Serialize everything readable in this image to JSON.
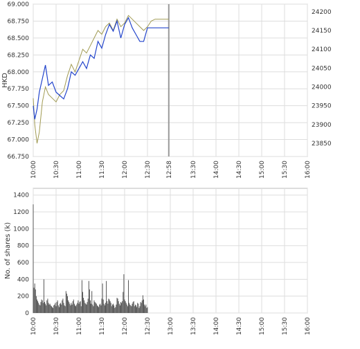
{
  "chart_data": [
    {
      "type": "line",
      "ylabel": "HKD",
      "x_ticks": [
        "10:00",
        "10:30",
        "11:00",
        "11:30",
        "12:00",
        "12:30",
        "12:58",
        "13:30",
        "14:00",
        "14:30",
        "15:00",
        "15:30",
        "16:00"
      ],
      "x_range": [
        "10:00",
        "16:00"
      ],
      "y_ticks": [
        "66.750",
        "67.000",
        "67.250",
        "67.500",
        "67.750",
        "68.000",
        "68.250",
        "68.500",
        "68.750",
        "69.000"
      ],
      "ylim": [
        66.75,
        69.0
      ],
      "y2_ticks": [
        "23850",
        "23900",
        "23950",
        "24000",
        "24050",
        "24100",
        "24150",
        "24200"
      ],
      "y2lim": [
        23815,
        24220
      ],
      "marker_time": "12:58",
      "grid": true,
      "colors": {
        "price": "#2244cc",
        "index": "#a09a52",
        "marker": "#999999",
        "grid": "#dddddd"
      },
      "series": [
        {
          "axis": "left",
          "x": [
            "10:00",
            "10:02",
            "10:05",
            "10:08",
            "10:12",
            "10:16",
            "10:20",
            "10:25",
            "10:30",
            "10:35",
            "10:40",
            "10:45",
            "10:50",
            "10:55",
            "11:00",
            "11:05",
            "11:10",
            "11:15",
            "11:20",
            "11:25",
            "11:30",
            "11:35",
            "11:40",
            "11:45",
            "11:50",
            "11:55",
            "12:00",
            "12:05",
            "12:10",
            "12:15",
            "12:20",
            "12:25",
            "12:30",
            "12:35",
            "12:40",
            "12:45",
            "12:50",
            "12:58"
          ],
          "y": [
            67.5,
            67.3,
            67.45,
            67.7,
            67.9,
            68.1,
            67.8,
            67.85,
            67.7,
            67.65,
            67.6,
            67.75,
            68.0,
            67.95,
            68.05,
            68.15,
            68.05,
            68.25,
            68.2,
            68.45,
            68.35,
            68.55,
            68.7,
            68.6,
            68.75,
            68.5,
            68.7,
            68.8,
            68.65,
            68.55,
            68.45,
            68.45,
            68.65,
            68.65,
            68.65,
            68.65,
            68.65,
            68.65
          ]
        },
        {
          "axis": "right",
          "x": [
            "10:00",
            "10:02",
            "10:05",
            "10:08",
            "10:12",
            "10:16",
            "10:20",
            "10:25",
            "10:30",
            "10:35",
            "10:40",
            "10:45",
            "10:50",
            "10:55",
            "11:00",
            "11:05",
            "11:10",
            "11:15",
            "11:20",
            "11:25",
            "11:30",
            "11:35",
            "11:40",
            "11:45",
            "11:50",
            "11:55",
            "12:00",
            "12:05",
            "12:10",
            "12:15",
            "12:20",
            "12:25",
            "12:30",
            "12:35",
            "12:40",
            "12:45",
            "12:50",
            "12:58"
          ],
          "y": [
            23970,
            23900,
            23850,
            23880,
            23960,
            24000,
            23980,
            23970,
            23960,
            23980,
            23990,
            24030,
            24060,
            24040,
            24070,
            24100,
            24090,
            24110,
            24130,
            24150,
            24140,
            24160,
            24170,
            24150,
            24180,
            24160,
            24170,
            24190,
            24180,
            24170,
            24160,
            24150,
            24160,
            24175,
            24180,
            24180,
            24180,
            24180
          ]
        }
      ]
    },
    {
      "type": "bar",
      "ylabel": "No. of shares (k)",
      "x_ticks": [
        "10:00",
        "10:30",
        "11:00",
        "11:30",
        "12:00",
        "12:30",
        "13:00",
        "13:30",
        "14:00",
        "14:30",
        "15:00",
        "15:30",
        "16:00"
      ],
      "x_range": [
        "10:00",
        "16:00"
      ],
      "y_ticks": [
        "0",
        "200",
        "400",
        "600",
        "800",
        "1000",
        "1200",
        "1400"
      ],
      "ylim": [
        0,
        1480
      ],
      "grid": true,
      "colors": {
        "bar": "#555555",
        "grid": "#dddddd"
      },
      "bars": {
        "x": [
          "10:00",
          "10:01",
          "10:02",
          "10:03",
          "10:04",
          "10:05",
          "10:06",
          "10:07",
          "10:08",
          "10:09",
          "10:10",
          "10:11",
          "10:12",
          "10:13",
          "10:14",
          "10:15",
          "10:16",
          "10:17",
          "10:18",
          "10:19",
          "10:20",
          "10:21",
          "10:22",
          "10:23",
          "10:24",
          "10:25",
          "10:26",
          "10:27",
          "10:28",
          "10:29",
          "10:30",
          "10:31",
          "10:32",
          "10:33",
          "10:34",
          "10:35",
          "10:36",
          "10:37",
          "10:38",
          "10:39",
          "10:40",
          "10:41",
          "10:42",
          "10:43",
          "10:44",
          "10:45",
          "10:46",
          "10:47",
          "10:48",
          "10:49",
          "10:50",
          "10:51",
          "10:52",
          "10:53",
          "10:54",
          "10:55",
          "10:56",
          "10:57",
          "10:58",
          "10:59",
          "11:00",
          "11:01",
          "11:02",
          "11:03",
          "11:04",
          "11:05",
          "11:06",
          "11:07",
          "11:08",
          "11:09",
          "11:10",
          "11:11",
          "11:12",
          "11:13",
          "11:14",
          "11:15",
          "11:16",
          "11:17",
          "11:18",
          "11:19",
          "11:20",
          "11:21",
          "11:22",
          "11:23",
          "11:24",
          "11:25",
          "11:26",
          "11:27",
          "11:28",
          "11:29",
          "11:30",
          "11:31",
          "11:32",
          "11:33",
          "11:34",
          "11:35",
          "11:36",
          "11:37",
          "11:38",
          "11:39",
          "11:40",
          "11:41",
          "11:42",
          "11:43",
          "11:44",
          "11:45",
          "11:46",
          "11:47",
          "11:48",
          "11:49",
          "11:50",
          "11:51",
          "11:52",
          "11:53",
          "11:54",
          "11:55",
          "11:56",
          "11:57",
          "11:58",
          "11:59",
          "12:00",
          "12:01",
          "12:02",
          "12:03",
          "12:04",
          "12:05",
          "12:06",
          "12:07",
          "12:08",
          "12:09",
          "12:10",
          "12:11",
          "12:12",
          "12:13",
          "12:14",
          "12:15",
          "12:16",
          "12:17",
          "12:18",
          "12:19",
          "12:20",
          "12:21",
          "12:22",
          "12:23",
          "12:24",
          "12:25",
          "12:26",
          "12:27",
          "12:28",
          "12:29",
          "12:30"
        ],
        "values": [
          1290,
          300,
          350,
          280,
          200,
          160,
          140,
          120,
          100,
          90,
          130,
          160,
          150,
          120,
          400,
          130,
          110,
          90,
          150,
          170,
          120,
          100,
          110,
          90,
          80,
          70,
          60,
          90,
          100,
          120,
          80,
          130,
          150,
          90,
          70,
          110,
          120,
          100,
          150,
          170,
          120,
          90,
          80,
          260,
          230,
          200,
          150,
          130,
          110,
          90,
          120,
          100,
          140,
          160,
          110,
          90,
          80,
          100,
          120,
          150,
          110,
          130,
          140,
          80,
          390,
          250,
          180,
          150,
          120,
          110,
          100,
          130,
          170,
          380,
          280,
          150,
          110,
          260,
          100,
          80,
          150,
          130,
          120,
          110,
          90,
          80,
          70,
          100,
          110,
          90,
          170,
          350,
          160,
          110,
          90,
          120,
          380,
          140,
          110,
          170,
          160,
          140,
          120,
          80,
          100,
          110,
          90,
          60,
          70,
          100,
          180,
          170,
          140,
          110,
          90,
          130,
          120,
          140,
          250,
          460,
          160,
          140,
          120,
          100,
          80,
          390,
          120,
          100,
          90,
          80,
          110,
          130,
          140,
          80,
          100,
          90,
          70,
          120,
          110,
          60,
          80,
          130,
          120,
          150,
          210,
          160,
          100,
          80,
          100,
          60,
          70
        ]
      }
    }
  ]
}
